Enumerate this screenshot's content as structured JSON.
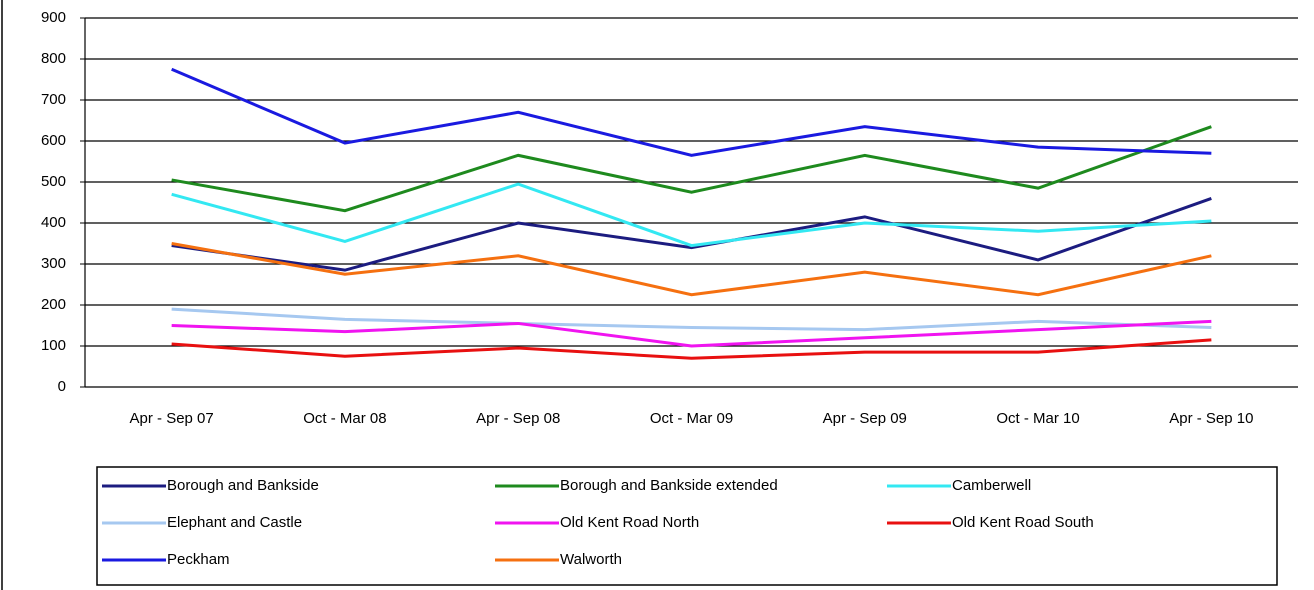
{
  "chart_data": {
    "type": "line",
    "categories": [
      "Apr - Sep 07",
      "Oct - Mar 08",
      "Apr - Sep 08",
      "Oct - Mar 09",
      "Apr - Sep 09",
      "Oct - Mar 10",
      "Apr - Sep 10"
    ],
    "series": [
      {
        "name": "Borough and Bankside",
        "color": "#1c1c80",
        "values": [
          345,
          285,
          400,
          340,
          415,
          310,
          460
        ]
      },
      {
        "name": "Borough and Bankside extended",
        "color": "#1e8a1e",
        "values": [
          505,
          430,
          565,
          475,
          565,
          485,
          635
        ]
      },
      {
        "name": "Camberwell",
        "color": "#33e8f2",
        "values": [
          470,
          355,
          495,
          345,
          400,
          380,
          405
        ]
      },
      {
        "name": "Elephant and Castle",
        "color": "#a6c8f0",
        "values": [
          190,
          165,
          155,
          145,
          140,
          160,
          145
        ]
      },
      {
        "name": "Old Kent Road North",
        "color": "#f014f0",
        "values": [
          150,
          135,
          155,
          100,
          120,
          140,
          160
        ]
      },
      {
        "name": "Old Kent Road South",
        "color": "#e81010",
        "values": [
          105,
          75,
          95,
          70,
          85,
          85,
          115
        ]
      },
      {
        "name": "Peckham",
        "color": "#1a1ae0",
        "values": [
          775,
          595,
          670,
          565,
          635,
          585,
          570
        ]
      },
      {
        "name": "Walworth",
        "color": "#f57010",
        "values": [
          350,
          275,
          320,
          225,
          280,
          225,
          320
        ]
      }
    ],
    "ylim": [
      0,
      900
    ],
    "yticks": [
      0,
      100,
      200,
      300,
      400,
      500,
      600,
      700,
      800,
      900
    ],
    "grid": true,
    "legend": "bottom"
  }
}
